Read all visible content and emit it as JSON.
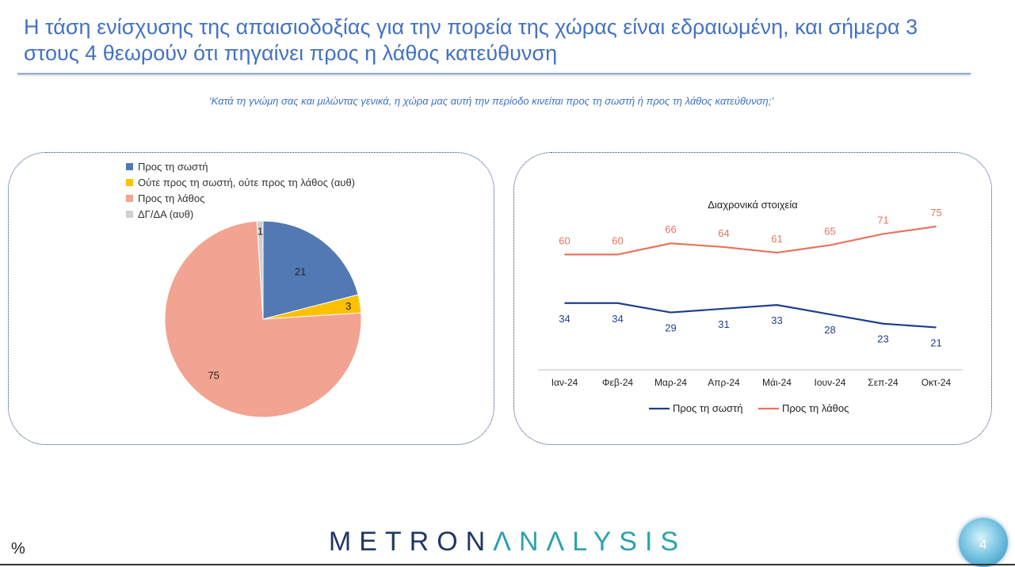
{
  "slide": {
    "title": "Η τάση ενίσχυσης της απαισιοδοξίας για την πορεία της χώρας είναι εδραιωμένη, και σήμερα 3 στους 4 θεωρούν ότι πηγαίνει προς η λάθος κατεύθυνση",
    "question": "‘Κατά τη γνώμη σας και μιλώντας γενικά, η χώρα μας αυτή την περίοδο κινείται προς τη σωστή ή προς τη λάθος κατεύθυνση;’",
    "unit": "%",
    "page_number": "4",
    "brand_part1": "METRON",
    "brand_part2": "ΛNΛLYSIS"
  },
  "chart_data": [
    {
      "type": "pie",
      "title": "",
      "legend_position": "top",
      "slices": [
        {
          "label": "Προς τη σωστή",
          "value": 21,
          "value_label": "21",
          "color": "#5279b4"
        },
        {
          "label": "Ούτε προς τη σωστή, ούτε προς τη λάθος (αυθ)",
          "value": 3,
          "value_label": "3",
          "color": "#ffc000"
        },
        {
          "label": "Προς τη λάθος",
          "value": 75,
          "value_label": "75",
          "color": "#f2a391"
        },
        {
          "label": "ΔΓ/ΔΑ (αυθ)",
          "value": 1,
          "value_label": "1",
          "color": "#d0d0d0"
        }
      ]
    },
    {
      "type": "line",
      "title": "Διαχρονικά στοιχεία",
      "categories": [
        "Ιαν-24",
        "Φεβ-24",
        "Μαρ-24",
        "Απρ-24",
        "Μάι-24",
        "Ιουν-24",
        "Σεπ-24",
        "Οκτ-24"
      ],
      "ylim": [
        0,
        100
      ],
      "grid": false,
      "legend_position": "bottom",
      "series": [
        {
          "name": "Προς τη σωστή",
          "values": [
            34,
            34,
            29,
            31,
            33,
            28,
            23,
            21
          ],
          "value_labels": [
            "34",
            "34",
            "29",
            "31",
            "33",
            "28",
            "23",
            "21"
          ],
          "color": "#1f3f8c"
        },
        {
          "name": "Προς τη λάθος",
          "values": [
            60,
            60,
            66,
            64,
            61,
            65,
            71,
            75
          ],
          "value_labels": [
            "60",
            "60",
            "66",
            "64",
            "61",
            "65",
            "71",
            "75"
          ],
          "color": "#e9735d"
        }
      ]
    }
  ]
}
